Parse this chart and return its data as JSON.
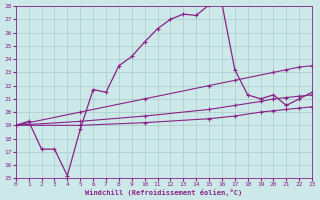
{
  "bg_color": "#cce8e8",
  "grid_color": "#aacccc",
  "line_color": "#882288",
  "xlim": [
    0,
    23
  ],
  "ylim": [
    15,
    28
  ],
  "xticks": [
    0,
    1,
    2,
    3,
    4,
    5,
    6,
    7,
    8,
    9,
    10,
    11,
    12,
    13,
    14,
    15,
    16,
    17,
    18,
    19,
    20,
    21,
    22,
    23
  ],
  "yticks": [
    15,
    16,
    17,
    18,
    19,
    20,
    21,
    22,
    23,
    24,
    25,
    26,
    27,
    28
  ],
  "xlabel": "Windchill (Refroidissement éolien,°C)",
  "series": [
    {
      "x": [
        0,
        1,
        2,
        3,
        4,
        5,
        6,
        7,
        8,
        9,
        10,
        11,
        12,
        13,
        14,
        15,
        16,
        17,
        18,
        19,
        20,
        21,
        22,
        23
      ],
      "y": [
        19.0,
        19.3,
        17.2,
        17.2,
        15.2,
        18.7,
        21.7,
        21.5,
        23.5,
        24.2,
        25.3,
        26.3,
        27.0,
        27.4,
        27.3,
        28.1,
        28.2,
        23.2,
        21.3,
        21.0,
        21.3,
        20.5,
        21.0,
        21.5
      ],
      "lw": 0.9
    },
    {
      "x": [
        0,
        5,
        10,
        15,
        17,
        20,
        21,
        22,
        23
      ],
      "y": [
        19.0,
        20.0,
        21.0,
        22.0,
        22.4,
        23.0,
        23.2,
        23.4,
        23.5
      ],
      "lw": 0.8
    },
    {
      "x": [
        0,
        5,
        10,
        15,
        17,
        19,
        20,
        21,
        22,
        23
      ],
      "y": [
        19.0,
        19.3,
        19.7,
        20.2,
        20.5,
        20.8,
        21.0,
        21.1,
        21.2,
        21.3
      ],
      "lw": 0.8
    },
    {
      "x": [
        0,
        5,
        10,
        15,
        17,
        19,
        20,
        21,
        22,
        23
      ],
      "y": [
        19.0,
        19.0,
        19.2,
        19.5,
        19.7,
        20.0,
        20.1,
        20.2,
        20.3,
        20.4
      ],
      "lw": 0.8
    }
  ]
}
